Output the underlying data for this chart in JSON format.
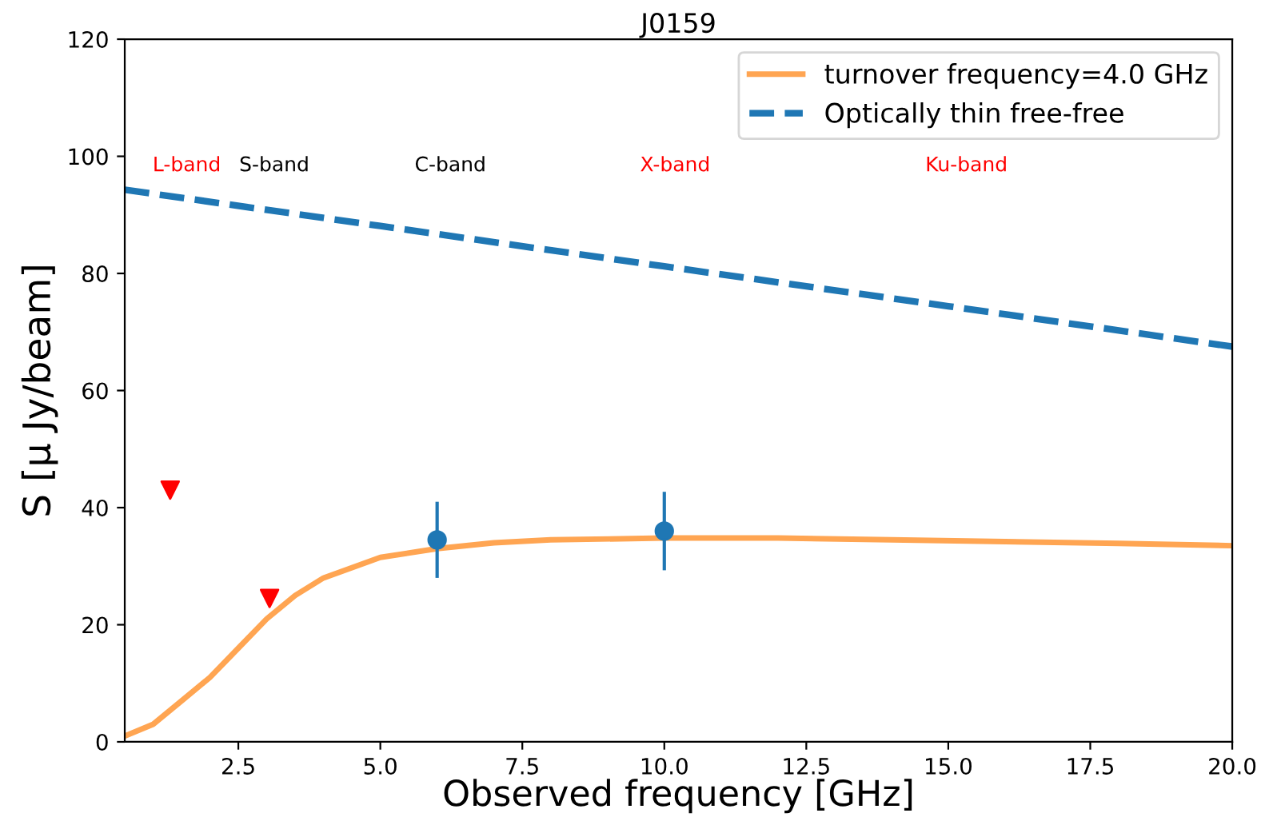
{
  "chart_data": {
    "type": "line",
    "title": "J0159",
    "xlabel": "Observed frequency [GHz]",
    "ylabel": "S [μ Jy/beam]",
    "xlim": [
      0.5,
      20
    ],
    "ylim": [
      0,
      120
    ],
    "xticks": [
      2.5,
      {
        "value": 5,
        "label": "5.0"
      },
      7.5,
      {
        "value": 10,
        "label": "10.0"
      },
      12.5,
      {
        "value": 15,
        "label": "15.0"
      },
      17.5,
      {
        "value": 20,
        "label": "20.0"
      }
    ],
    "yticks": [
      0,
      20,
      40,
      60,
      80,
      100,
      120
    ],
    "grid": false,
    "legend": "top right",
    "series": [
      {
        "name": "turnover frequency=4.0 GHz",
        "line_style": "solid",
        "color": "#ffa552",
        "x": [
          0.5,
          1,
          1.5,
          2,
          2.5,
          3,
          3.5,
          4,
          5,
          6,
          7,
          8,
          10,
          12,
          14,
          16,
          18,
          20
        ],
        "values": [
          1,
          3,
          7,
          11,
          16,
          21,
          25,
          28,
          31.5,
          33,
          34,
          34.5,
          34.8,
          34.8,
          34.5,
          34.2,
          33.9,
          33.5
        ]
      },
      {
        "name": "Optically thin free-free",
        "line_style": "dashed",
        "color": "#1f77b4",
        "x": [
          0.5,
          5,
          10,
          15,
          20
        ],
        "values": [
          94.3,
          88.1,
          81.2,
          74.4,
          67.5
        ]
      },
      {
        "type": "scatter",
        "marker": "circle",
        "color": "#1f77b4",
        "x": [
          6,
          10
        ],
        "values": [
          34.5,
          36
        ],
        "errors": [
          6.5,
          6.7
        ]
      },
      {
        "type": "scatter",
        "marker": "triangle",
        "color": "#ff0000",
        "x": [
          1.3,
          3.05
        ],
        "values": [
          43,
          24.5
        ]
      }
    ],
    "annotations": [
      "L-band",
      "S-band",
      "C-band",
      "X-band",
      "Ku-band"
    ]
  }
}
